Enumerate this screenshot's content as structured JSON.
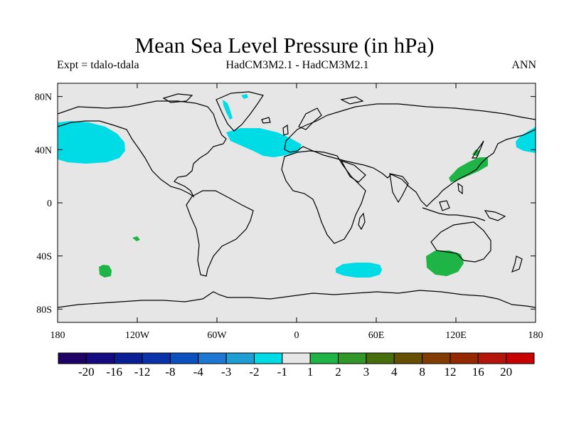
{
  "header": {
    "title": "Mean Sea Level Pressure (in hPa)",
    "expt": "Expt = tdalo-tdala",
    "models": "HadCM3M2.1 - HadCM3M2.1",
    "season": "ANN"
  },
  "axes": {
    "y_ticks": [
      {
        "value": 80,
        "label": "80N"
      },
      {
        "value": 40,
        "label": "40N"
      },
      {
        "value": 0,
        "label": "0"
      },
      {
        "value": -40,
        "label": "40S"
      },
      {
        "value": -80,
        "label": "80S"
      }
    ],
    "x_ticks": [
      {
        "value": -180,
        "label": "180"
      },
      {
        "value": -120,
        "label": "120W"
      },
      {
        "value": -60,
        "label": "60W"
      },
      {
        "value": 0,
        "label": "0"
      },
      {
        "value": 60,
        "label": "60E"
      },
      {
        "value": 120,
        "label": "120E"
      },
      {
        "value": 180,
        "label": "180"
      }
    ],
    "lon_range": [
      -180,
      180
    ],
    "lat_range": [
      -90,
      90
    ]
  },
  "colorbar": {
    "colors": [
      "#1e0066",
      "#140a82",
      "#0a1e96",
      "#0a32aa",
      "#0a50be",
      "#1e78d2",
      "#1e9ed2",
      "#00dce6",
      "#e6e6e6",
      "#1eb446",
      "#329628",
      "#466e0a",
      "#645000",
      "#823c00",
      "#962800",
      "#b4140a",
      "#c80000"
    ],
    "labels": [
      "-20",
      "-16",
      "-12",
      "-8",
      "-4",
      "-3",
      "-2",
      "-1",
      "1",
      "2",
      "3",
      "4",
      "8",
      "12",
      "16",
      "20"
    ]
  },
  "colors": {
    "background": "#e6e6e6",
    "negative": "#00dce6",
    "positive": "#1eb446"
  },
  "chart_data": {
    "type": "heatmap",
    "variable": "mean sea level pressure difference",
    "units": "hPa",
    "regions": [
      {
        "sign": "negative",
        "level": "-2 to -1",
        "center_lon": -168,
        "center_lat": 45
      },
      {
        "sign": "negative",
        "level": "-2 to -1",
        "center_lon": -30,
        "center_lat": 48
      },
      {
        "sign": "negative",
        "level": "-2 to -1",
        "center_lon": 175,
        "center_lat": 47
      },
      {
        "sign": "negative",
        "level": "-2 to -1",
        "center_lon": 47,
        "center_lat": -50
      },
      {
        "sign": "negative",
        "level": "-2 to -1",
        "center_lon": -48,
        "center_lat": 78
      },
      {
        "sign": "positive",
        "level": "1 to 2",
        "center_lon": 128,
        "center_lat": 30
      },
      {
        "sign": "positive",
        "level": "1 to 2",
        "center_lon": 111,
        "center_lat": -45
      },
      {
        "sign": "positive",
        "level": "1 to 2",
        "center_lon": -145,
        "center_lat": -51
      },
      {
        "sign": "positive",
        "level": "1 to 2",
        "center_lon": -122,
        "center_lat": -27
      }
    ]
  }
}
